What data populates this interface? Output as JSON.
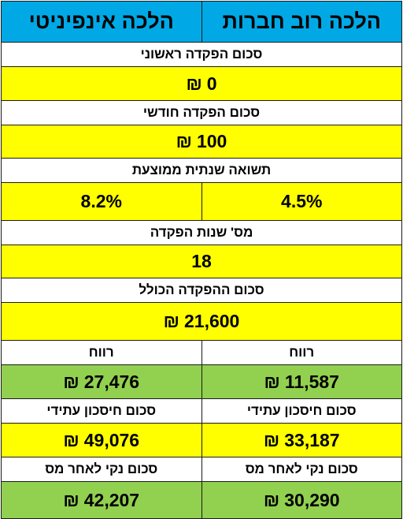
{
  "header": {
    "col_right": "הלכה רוב חברות",
    "col_left": "הלכה אינפיניטי"
  },
  "currency_symbol": "₪",
  "initial_deposit": {
    "label": "סכום הפקדה ראשוני",
    "value": "0"
  },
  "monthly_deposit": {
    "label": "סכום הפקדה חודשי",
    "value": "100"
  },
  "avg_annual_return": {
    "label": "תשואה שנתית ממוצעת",
    "right": "4.5%",
    "left": "8.2%"
  },
  "deposit_years": {
    "label": "מס' שנות הפקדה",
    "value": "18"
  },
  "total_deposit": {
    "label": "סכום ההפקדה הכולל",
    "value": "21,600"
  },
  "profit": {
    "label_right": "רווח",
    "label_left": "רווח",
    "right": "11,587",
    "left": "27,476"
  },
  "future_savings": {
    "label_right": "סכום חיסכון עתידי",
    "label_left": "סכום חיסכון עתידי",
    "right": "33,187",
    "left": "49,076"
  },
  "net_after_tax": {
    "label_right": "סכום נקי לאחר מס",
    "label_left": "סכום נקי לאחר מס",
    "right": "30,290",
    "left": "42,207"
  },
  "colors": {
    "header": "#00a9e6",
    "highlight": "#ffff00",
    "result": "#92d050",
    "border": "#1a1a1a"
  }
}
